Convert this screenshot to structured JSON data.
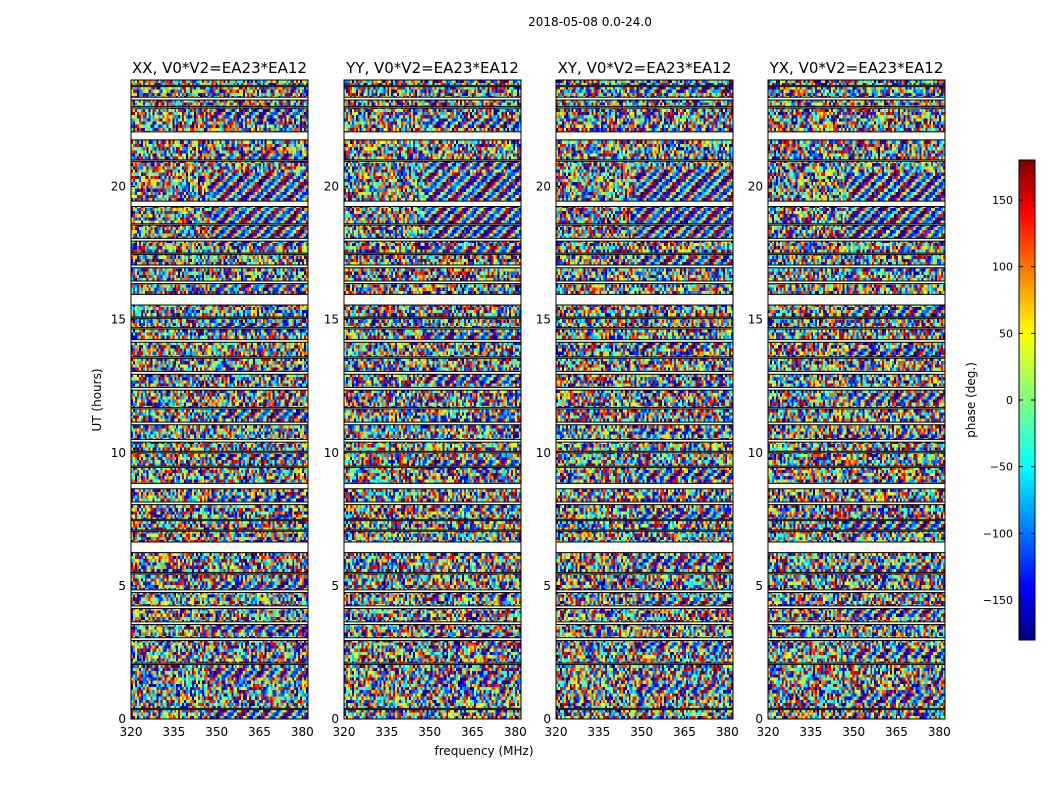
{
  "figure": {
    "suptitle": "2018-05-08 0.0-24.0"
  },
  "chart_data": {
    "type": "heatmap",
    "description_hidden": "",
    "xlabel": "frequency (MHz)",
    "ylabel": "UT (hours)",
    "xlim": [
      320,
      382
    ],
    "ylim": [
      0,
      24
    ],
    "x_ticks": [
      320,
      335,
      350,
      365,
      380
    ],
    "y_ticks": [
      0,
      5,
      10,
      15,
      20
    ],
    "panels": [
      {
        "title": "XX, V0*V2=EA23*EA12"
      },
      {
        "title": "YY, V0*V2=EA23*EA12"
      },
      {
        "title": "XY, V0*V2=EA23*EA12"
      },
      {
        "title": "YX, V0*V2=EA23*EA12"
      }
    ],
    "colorbar": {
      "label": "phase (deg.)",
      "range": [
        -180,
        180
      ],
      "ticks": [
        150,
        100,
        50,
        0,
        -50,
        -100,
        -150
      ],
      "tick_labels": [
        "150",
        "100",
        "50",
        "0",
        "−50",
        "−100",
        "−150"
      ],
      "colormap": "jet"
    },
    "flagged_time_gaps_hours": [
      [
        0.35,
        0.4
      ],
      [
        2.05,
        2.1
      ],
      [
        2.95,
        3.05
      ],
      [
        3.55,
        3.65
      ],
      [
        4.15,
        4.25
      ],
      [
        4.75,
        4.85
      ],
      [
        5.45,
        5.5
      ],
      [
        6.25,
        6.65
      ],
      [
        7.05,
        7.1
      ],
      [
        7.45,
        7.5
      ],
      [
        8.05,
        8.15
      ],
      [
        8.65,
        8.85
      ],
      [
        9.45,
        9.5
      ],
      [
        10.0,
        10.05
      ],
      [
        10.4,
        10.5
      ],
      [
        11.05,
        11.15
      ],
      [
        11.65,
        11.7
      ],
      [
        12.35,
        12.45
      ],
      [
        12.95,
        13.05
      ],
      [
        13.55,
        13.6
      ],
      [
        14.15,
        14.25
      ],
      [
        14.65,
        14.7
      ],
      [
        15.05,
        15.1
      ],
      [
        15.55,
        15.95
      ],
      [
        16.35,
        16.45
      ],
      [
        16.95,
        17.05
      ],
      [
        17.45,
        17.5
      ],
      [
        17.95,
        18.05
      ],
      [
        18.55,
        18.6
      ],
      [
        19.25,
        19.45
      ],
      [
        20.95,
        21.0
      ],
      [
        21.75,
        22.05
      ],
      [
        22.95,
        23.0
      ],
      [
        23.25,
        23.35
      ],
      [
        23.75,
        23.8
      ]
    ]
  }
}
